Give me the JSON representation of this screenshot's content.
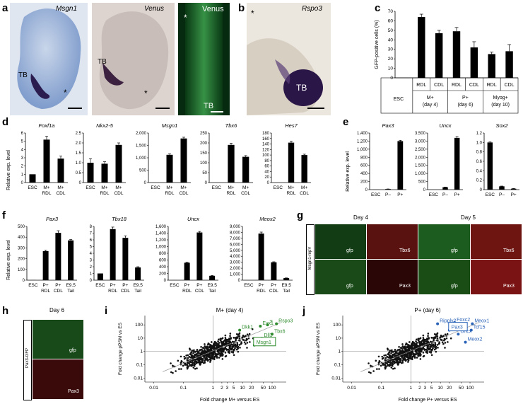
{
  "panels": {
    "a": "a",
    "b": "b",
    "c": "c",
    "d": "d",
    "e": "e",
    "f": "f",
    "g": "g",
    "h": "h",
    "i": "i",
    "j": "j"
  },
  "panel_a": {
    "img1_title": "Msgn1",
    "img2_title": "Venus",
    "img3_title": "Venus",
    "tb": "TB",
    "star": "*"
  },
  "panel_b": {
    "title": "Rspo3",
    "tb": "TB",
    "star": "*"
  },
  "panel_c": {
    "ylabel": "GFP-positive cells (%)",
    "yticks": [
      "0",
      "10",
      "20",
      "30",
      "40",
      "50",
      "60",
      "70"
    ],
    "row1": [
      "ESC",
      "RDL",
      "CDL",
      "RDL",
      "CDL",
      "RDL",
      "CDL"
    ],
    "groups": [
      "M+",
      "P+",
      "Myog+"
    ],
    "days": [
      "(day 4)",
      "(day 6)",
      "(day 10)"
    ]
  },
  "panel_d": {
    "ylabel": "Relative exp. level",
    "genes": [
      "Foxf1a",
      "Nkx2-5",
      "Msgn1",
      "Tbx6",
      "Hes7"
    ]
  },
  "panel_e": {
    "ylabel": "Relative exp. level",
    "genes": [
      "Pax3",
      "Uncx",
      "Sox2"
    ]
  },
  "panel_f": {
    "ylabel": "Relative exp. level",
    "genes": [
      "Pax3",
      "Tbx18",
      "Uncx",
      "Meox2"
    ]
  },
  "panel_g": {
    "side": "Msgn1-repV",
    "day4": "Day 4",
    "day5": "Day 5",
    "labels": [
      "gfp",
      "Tbx6",
      "gfp",
      "Tbx6",
      "gfp",
      "Pax3",
      "gfp",
      "Pax3"
    ]
  },
  "panel_h": {
    "side": "Pax3-GFP",
    "day": "Day 6",
    "labels": [
      "gfp",
      "Pax3"
    ]
  },
  "panel_i": {
    "title": "M+ (day 4)",
    "ylabel": "Fold change pPSM vs ES",
    "xlabel": "Fold change M+ versus ES",
    "genes": [
      "Dkk1",
      "Evx1",
      "T",
      "Rspo3",
      "Tbx6",
      "Dll3",
      "Msgn1"
    ]
  },
  "panel_j": {
    "title": "P+ (day 6)",
    "ylabel": "Fold change aPSM vs ES",
    "xlabel": "Fold change P+ versus ES",
    "genes": [
      "Ripply2",
      "Foxc2",
      "Meox1",
      "Dmrt2",
      "Tcf15",
      "Uncx",
      "Meox2",
      "Pax3"
    ]
  },
  "colors": {
    "green": "#2e8b2e",
    "blue": "#2a62b8",
    "bar": "#000000"
  },
  "chart_data": [
    {
      "panel": "c",
      "type": "bar",
      "categories": [
        "ESC",
        "M+ RDL",
        "M+ CDL",
        "P+ RDL",
        "P+ CDL",
        "Myog+ RDL",
        "Myog+ CDL"
      ],
      "values": [
        0,
        64,
        47,
        49,
        32,
        25,
        28
      ],
      "errors": [
        0,
        3,
        3,
        4,
        6,
        2,
        7
      ],
      "ylim": [
        0,
        70
      ],
      "ylabel": "GFP-positive cells (%)"
    },
    {
      "panel": "d",
      "gene": "Foxf1a",
      "type": "bar",
      "categories": [
        "ESC",
        "M+ RDL",
        "M+ CDL"
      ],
      "values": [
        1.0,
        5.2,
        2.9
      ],
      "errors": [
        0,
        0.4,
        0.3
      ],
      "ylim": [
        0,
        6
      ],
      "yticks": [
        "0",
        "1",
        "2",
        "3",
        "4",
        "5",
        "6"
      ],
      "xlabels": [
        "ESC",
        "M+",
        "M+"
      ],
      "xlabels2": [
        "",
        "RDL",
        "CDL"
      ]
    },
    {
      "panel": "d",
      "gene": "Nkx2-5",
      "type": "bar",
      "categories": [
        "ESC",
        "M+ RDL",
        "M+ CDL"
      ],
      "values": [
        1.0,
        0.95,
        1.9
      ],
      "errors": [
        0.2,
        0.1,
        0.1
      ],
      "ylim": [
        0,
        2.5
      ],
      "yticks": [
        "0",
        "0.5",
        "1.0",
        "1.5",
        "2.0",
        "2.5"
      ],
      "xlabels": [
        "ESC",
        "M+",
        "M+"
      ],
      "xlabels2": [
        "",
        "RDL",
        "CDL"
      ]
    },
    {
      "panel": "d",
      "gene": "Msgn1",
      "type": "bar",
      "categories": [
        "ESC",
        "M+ RDL",
        "M+ CDL"
      ],
      "values": [
        0,
        1120,
        1780
      ],
      "errors": [
        0,
        40,
        50
      ],
      "ylim": [
        0,
        2000
      ],
      "yticks": [
        "0",
        "500",
        "1,000",
        "1,500",
        "2,000"
      ],
      "xlabels": [
        "ESC",
        "M+",
        "M+"
      ],
      "xlabels2": [
        "",
        "RDL",
        "CDL"
      ]
    },
    {
      "panel": "d",
      "gene": "Tbx6",
      "type": "bar",
      "categories": [
        "ESC",
        "M+ RDL",
        "M+ CDL"
      ],
      "values": [
        0,
        190,
        130
      ],
      "errors": [
        0,
        8,
        6
      ],
      "ylim": [
        0,
        250
      ],
      "yticks": [
        "0",
        "50",
        "100",
        "150",
        "200",
        "250"
      ],
      "xlabels": [
        "ESC",
        "M+",
        "M+"
      ],
      "xlabels2": [
        "",
        "RDL",
        "CDL"
      ]
    },
    {
      "panel": "d",
      "gene": "Hes7",
      "type": "bar",
      "categories": [
        "ESC",
        "M+ RDL",
        "M+ CDL"
      ],
      "values": [
        0,
        145,
        100
      ],
      "errors": [
        0,
        5,
        3
      ],
      "ylim": [
        0,
        180
      ],
      "yticks": [
        "0",
        "20",
        "40",
        "60",
        "80",
        "100",
        "120",
        "140",
        "160",
        "180"
      ],
      "xlabels": [
        "ESC",
        "M+",
        "M+"
      ],
      "xlabels2": [
        "",
        "RDL",
        "CDL"
      ]
    },
    {
      "panel": "e",
      "gene": "Pax3",
      "type": "bar",
      "categories": [
        "ESC",
        "P-",
        "P+"
      ],
      "values": [
        1,
        15,
        1200
      ],
      "errors": [
        0,
        2,
        20
      ],
      "ylim": [
        0,
        1400
      ],
      "yticks": [
        "0",
        "200",
        "400",
        "600",
        "800",
        "1,000",
        "1,200",
        "1,400"
      ],
      "xlabels": [
        "ESC",
        "P–",
        "P+"
      ]
    },
    {
      "panel": "e",
      "gene": "Uncx",
      "type": "bar",
      "categories": [
        "ESC",
        "P-",
        "P+"
      ],
      "values": [
        1,
        150,
        3200
      ],
      "errors": [
        0,
        10,
        80
      ],
      "ylim": [
        0,
        3500
      ],
      "yticks": [
        "0",
        "500",
        "1,000",
        "1,500",
        "2,000",
        "2,500",
        "3,000",
        "3,500"
      ],
      "xlabels": [
        "ESC",
        "P–",
        "P+"
      ]
    },
    {
      "panel": "e",
      "gene": "Sox2",
      "type": "bar",
      "categories": [
        "ESC",
        "P-",
        "P+"
      ],
      "values": [
        1.0,
        0.07,
        0.02
      ],
      "errors": [
        0.01,
        0.005,
        0.005
      ],
      "ylim": [
        0,
        1.2
      ],
      "yticks": [
        "0",
        "0.2",
        "0.4",
        "0.6",
        "0.8",
        "1.0",
        "1.2"
      ],
      "xlabels": [
        "ESC",
        "P–",
        "P+"
      ]
    },
    {
      "panel": "f",
      "gene": "Pax3",
      "type": "bar",
      "categories": [
        "ESC",
        "P+ RDL",
        "P+ CDL",
        "E9.5 Tail"
      ],
      "values": [
        1,
        270,
        440,
        370
      ],
      "errors": [
        0,
        8,
        20,
        8
      ],
      "ylim": [
        0,
        500
      ],
      "yticks": [
        "0",
        "100",
        "200",
        "300",
        "400",
        "500"
      ],
      "xlabels": [
        "ESC",
        "P+",
        "P+",
        "E9.5"
      ],
      "xlabels2": [
        "",
        "RDL",
        "CDL",
        "Tail"
      ]
    },
    {
      "panel": "f",
      "gene": "Tbx18",
      "type": "bar",
      "categories": [
        "ESC",
        "P+ RDL",
        "P+ CDL",
        "E9.5 Tail"
      ],
      "values": [
        1,
        7.6,
        6.3,
        1.9
      ],
      "errors": [
        0,
        0.3,
        0.3,
        0.1
      ],
      "ylim": [
        0,
        8
      ],
      "yticks": [
        "0",
        "1",
        "2",
        "3",
        "4",
        "5",
        "6",
        "7",
        "8"
      ],
      "xlabels": [
        "ESC",
        "P+",
        "P+",
        "E9.5"
      ],
      "xlabels2": [
        "",
        "RDL",
        "CDL",
        "Tail"
      ]
    },
    {
      "panel": "f",
      "gene": "Uncx",
      "type": "bar",
      "categories": [
        "ESC",
        "P+ RDL",
        "P+ CDL",
        "E9.5 Tail"
      ],
      "values": [
        1,
        520,
        1420,
        130
      ],
      "errors": [
        0,
        20,
        30,
        10
      ],
      "ylim": [
        0,
        1600
      ],
      "yticks": [
        "0",
        "200",
        "400",
        "600",
        "800",
        "1,000",
        "1,200",
        "1,400",
        "1,600"
      ],
      "xlabels": [
        "ESC",
        "P+",
        "P+",
        "E9.5"
      ],
      "xlabels2": [
        "",
        "RDL",
        "CDL",
        "Tail"
      ]
    },
    {
      "panel": "f",
      "gene": "Meox2",
      "type": "bar",
      "categories": [
        "ESC",
        "P+ RDL",
        "P+ CDL",
        "E9.5 Tail"
      ],
      "values": [
        1,
        7800,
        3000,
        350
      ],
      "errors": [
        0,
        250,
        80,
        30
      ],
      "ylim": [
        0,
        9000
      ],
      "yticks": [
        "0",
        "1,000",
        "2,000",
        "3,000",
        "4,000",
        "5,000",
        "6,000",
        "7,000",
        "8,000",
        "9,000"
      ],
      "xlabels": [
        "ESC",
        "P+",
        "P+",
        "E9.5"
      ],
      "xlabels2": [
        "",
        "RDL",
        "CDL",
        "Tail"
      ]
    },
    {
      "panel": "i",
      "type": "scatter",
      "xscale": "log",
      "yscale": "log",
      "xlim": [
        0.005,
        300
      ],
      "ylim": [
        0.005,
        500
      ],
      "xticks": [
        "0.01",
        "0.1",
        "1",
        "2",
        "3",
        "5",
        "10",
        "20",
        "50",
        "100"
      ],
      "yticks": [
        "0.01",
        "0.1",
        "1",
        "10",
        "100"
      ],
      "highlighted": [
        {
          "label": "Dkk1",
          "x": 8,
          "y": 40
        },
        {
          "label": "Evx1",
          "x": 40,
          "y": 80
        },
        {
          "label": "T",
          "x": 70,
          "y": 100
        },
        {
          "label": "Rspo3",
          "x": 140,
          "y": 120
        },
        {
          "label": "Tbx6",
          "x": 100,
          "y": 20
        },
        {
          "label": "Dll3",
          "x": 45,
          "y": 10
        },
        {
          "label": "Msgn1",
          "x": 25,
          "y": 3
        }
      ]
    },
    {
      "panel": "j",
      "type": "scatter",
      "xscale": "log",
      "yscale": "log",
      "xlim": [
        0.005,
        300
      ],
      "ylim": [
        0.005,
        500
      ],
      "xticks": [
        "0.01",
        "0.1",
        "1",
        "2",
        "3",
        "5",
        "10",
        "20",
        "50",
        "100"
      ],
      "yticks": [
        "0.01",
        "0.1",
        "1",
        "10",
        "100"
      ],
      "highlighted": [
        {
          "label": "Ripply2",
          "x": 8,
          "y": 120
        },
        {
          "label": "Foxc2",
          "x": 30,
          "y": 150
        },
        {
          "label": "Meox1",
          "x": 120,
          "y": 120
        },
        {
          "label": "Dmrt2",
          "x": 25,
          "y": 50
        },
        {
          "label": "Tcf15",
          "x": 110,
          "y": 40
        },
        {
          "label": "Uncx",
          "x": 40,
          "y": 20
        },
        {
          "label": "Meox2",
          "x": 70,
          "y": 5
        },
        {
          "label": "Pax3",
          "x": 20,
          "y": 40
        }
      ]
    }
  ]
}
